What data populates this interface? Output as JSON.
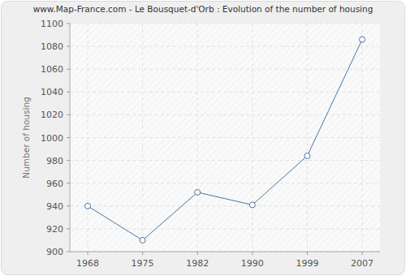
{
  "chart_data": {
    "type": "line",
    "title": "www.Map-France.com - Le Bousquet-d'Orb : Evolution of the number of housing",
    "y_label": "Number of housing",
    "categories": [
      "1968",
      "1975",
      "1982",
      "1990",
      "1999",
      "2007"
    ],
    "values": [
      940,
      910,
      952,
      941,
      984,
      1086
    ],
    "color": "#4a76a8",
    "marker": "circle",
    "ylim": [
      900,
      1100
    ],
    "yticks": [
      900,
      920,
      940,
      960,
      980,
      1000,
      1020,
      1040,
      1060,
      1080,
      1100
    ],
    "grid": true
  }
}
